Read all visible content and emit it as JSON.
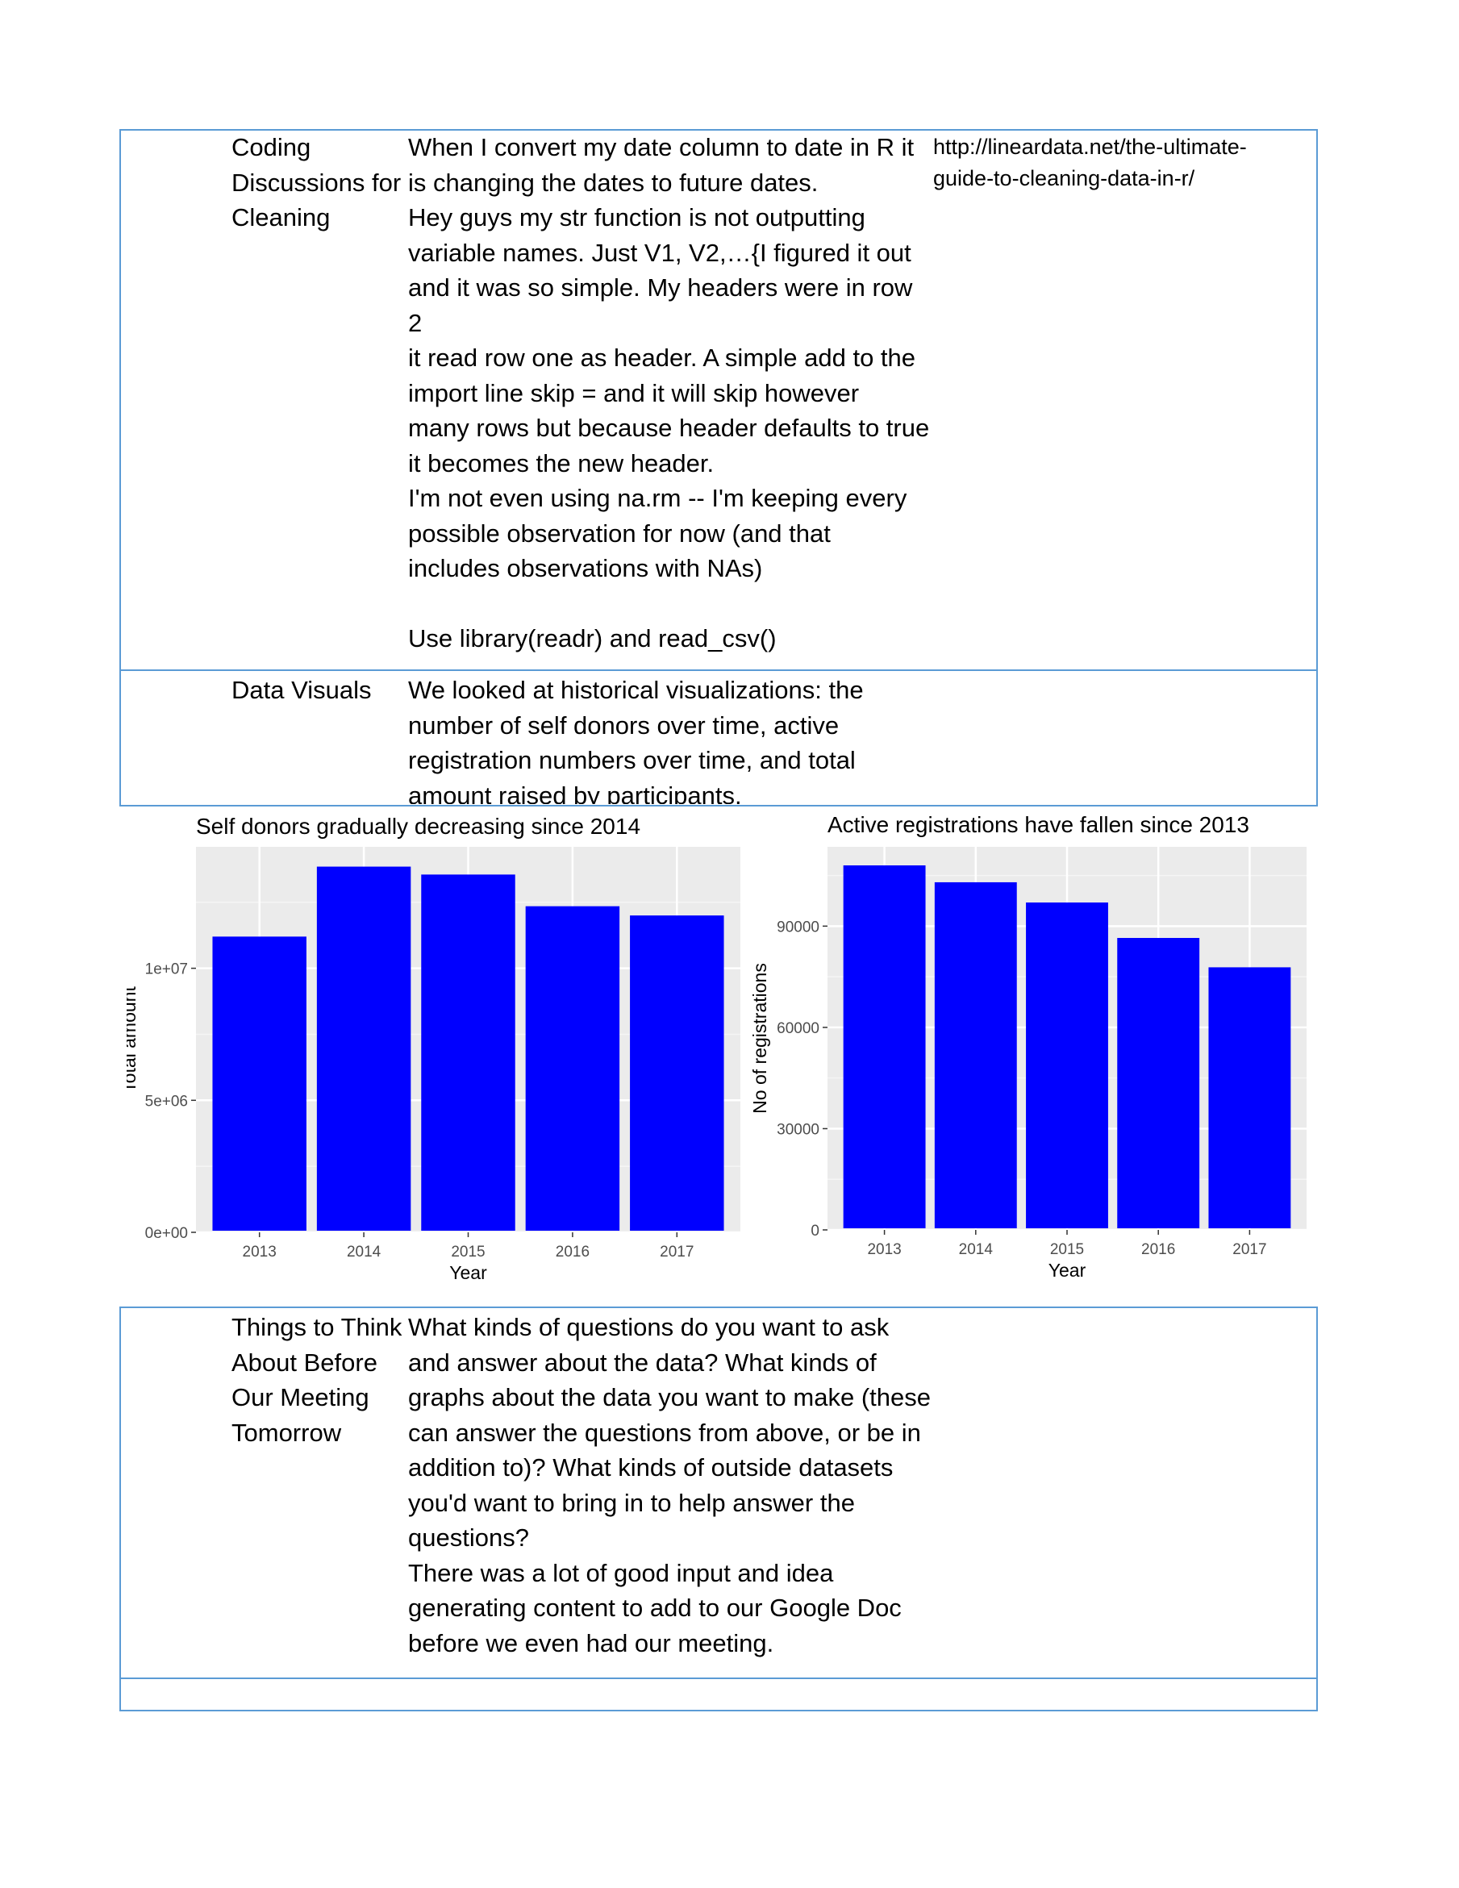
{
  "rows": [
    {
      "label": "Coding\nDiscussions for\nCleaning",
      "body": "When I convert my date column to date in R it\nis changing the dates to future dates.\nHey guys my str function is not outputting\nvariable names. Just V1, V2,…{I figured it out\nand it was so simple. My headers were in row 2\nit read row one as header. A simple add to the\nimport line skip = and it will skip however\nmany rows but because header defaults to true\nit becomes the new header.\n I'm not even using na.rm -- I'm keeping every\npossible observation for now (and that\nincludes observations with NAs)\n\n   Use library(readr) and read_csv()",
      "link": "http://lineardata.net/the-ultimate-\nguide-to-cleaning-data-in-r/"
    },
    {
      "label": "Data Visuals",
      "body": "We looked at historical visualizations: the\nnumber of self donors over time, active\nregistration numbers over time, and total\namount raised by participants."
    },
    {
      "label": "Things to Think\nAbout Before\nOur Meeting\nTomorrow",
      "body": "What kinds of questions do you want to ask\nand answer about the data? What kinds of\ngraphs about the data you want to make (these\ncan answer the questions from above, or be in\naddition to)?  What kinds of outside datasets\nyou'd want to bring in to help answer the\nquestions?\nThere was a lot of good input and idea\ngenerating content to add to our Google Doc\nbefore we even had our meeting."
    }
  ],
  "chart_data": [
    {
      "type": "bar",
      "title": "Self donors gradually decreasing since 2014",
      "xlabel": "Year",
      "ylabel": "Total amount",
      "categories": [
        "2013",
        "2014",
        "2015",
        "2016",
        "2017"
      ],
      "values": [
        11200000,
        13850000,
        13550000,
        12350000,
        12000000
      ],
      "ylim": [
        0,
        14600000
      ],
      "yticks": [
        0,
        5000000,
        10000000
      ],
      "ytick_labels": [
        "0e+00",
        "5e+06",
        "1e+07"
      ],
      "bar_color": "#0000ff",
      "grid": true
    },
    {
      "type": "bar",
      "title": "Active registrations have fallen since 2013",
      "xlabel": "Year",
      "ylabel": "No of registrations",
      "categories": [
        "2013",
        "2014",
        "2015",
        "2016",
        "2017"
      ],
      "values": [
        108000,
        103000,
        97000,
        86500,
        77800
      ],
      "ylim": [
        0,
        113500
      ],
      "yticks": [
        0,
        30000,
        60000,
        90000
      ],
      "ytick_labels": [
        "0",
        "30000",
        "60000",
        "90000"
      ],
      "bar_color": "#0000ff",
      "grid": true
    }
  ]
}
